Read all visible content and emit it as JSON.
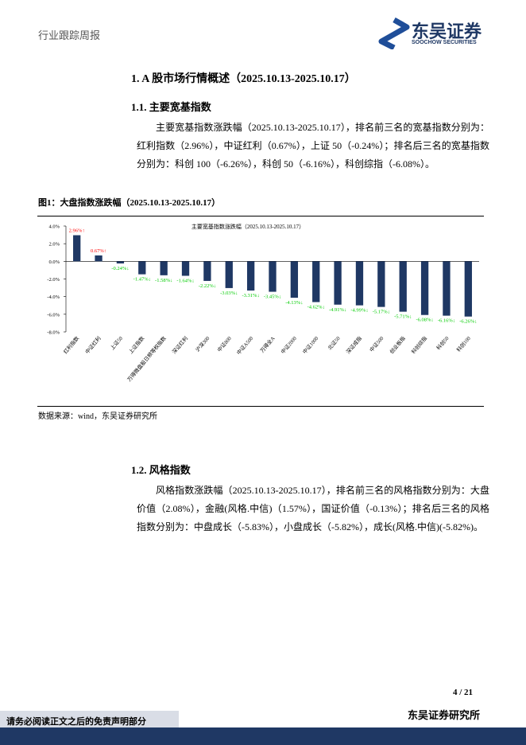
{
  "header": {
    "title": "行业跟踪周报",
    "logo_name": "东吴证券",
    "logo_subtitle": "SOOCHOW SECURITIES"
  },
  "section": {
    "heading": "1.  A 股市场行情概述（2025.10.13-2025.10.17）"
  },
  "subsections": [
    {
      "heading": "1.1.   主要宽基指数",
      "paragraph": "主要宽基指数涨跌幅（2025.10.13-2025.10.17），排名前三名的宽基指数分别为：红利指数（2.96%），中证红利（0.67%），上证 50（-0.24%）；排名后三名的宽基指数分别为：科创 100（-6.26%），科创 50（-6.16%），科创综指（-6.08%）。"
    },
    {
      "heading": "1.2.   风格指数",
      "paragraph": "风格指数涨跌幅（2025.10.13-2025.10.17），排名前三名的风格指数分别为：大盘价值（2.08%），金融(风格.中信)（1.57%），国证价值（-0.13%）；排名后三名的风格指数分别为：中盘成长（-5.83%），小盘成长（-5.82%），成长(风格.中信)(-5.82%)。"
    }
  ],
  "figure": {
    "caption": "图1：大盘指数涨跌幅（2025.10.13-2025.10.17）",
    "source": "数据来源：wind，东吴证券研究所"
  },
  "chart_data": {
    "type": "bar",
    "title": "主要宽基指数涨跌幅（2025.10.13-2025.10.17）",
    "categories": [
      "红利指数",
      "中证红利",
      "上证50",
      "上证指数",
      "万得微盘股日频等权指数",
      "深证红利",
      "沪深300",
      "中证800",
      "中证A500",
      "万得全A",
      "中证2000",
      "中证1000",
      "北证50",
      "深证成指",
      "中证500",
      "创业板指",
      "科创综指",
      "科创50",
      "科创100"
    ],
    "values": [
      2.96,
      0.67,
      -0.24,
      -1.47,
      -1.58,
      -1.64,
      -2.22,
      -3.03,
      -3.31,
      -3.45,
      -4.13,
      -4.62,
      -4.91,
      -4.99,
      -5.17,
      -5.71,
      -6.08,
      -6.16,
      -6.26
    ],
    "value_labels": [
      "2.96%↑",
      "0.67%↑",
      "-0.24%↓",
      "-1.47%↓",
      "-1.58%↓",
      "-1.64%↓",
      "-2.22%↓",
      "-3.03%↓",
      "-3.31%↓",
      "-3.45%↓",
      "-4.13%↓",
      "-4.62%↓",
      "-4.91%↓",
      "-4.99%↓",
      "-5.17%↓",
      "-5.71%↓",
      "-6.08%↓",
      "-6.16%↓",
      "-6.26%↓"
    ],
    "color": "#1f3864",
    "positive_label_color": "#ff0000",
    "negative_label_color": "#00cc00",
    "ylim": [
      -8,
      4
    ],
    "yticks": [
      {
        "value": 4,
        "label": "4.0%"
      },
      {
        "value": 2,
        "label": "2.0%"
      },
      {
        "value": 0,
        "label": "0.0%"
      },
      {
        "value": -2,
        "label": "-2.0%"
      },
      {
        "value": -4,
        "label": "-4.0%"
      },
      {
        "value": -6,
        "label": "-6.0%"
      },
      {
        "value": -8,
        "label": "-8.0%"
      }
    ],
    "grid": false
  },
  "footer": {
    "page": "4 / 21",
    "disclaimer": "请务必阅读正文之后的免责声明部分",
    "institute": "东吴证券研究所"
  }
}
